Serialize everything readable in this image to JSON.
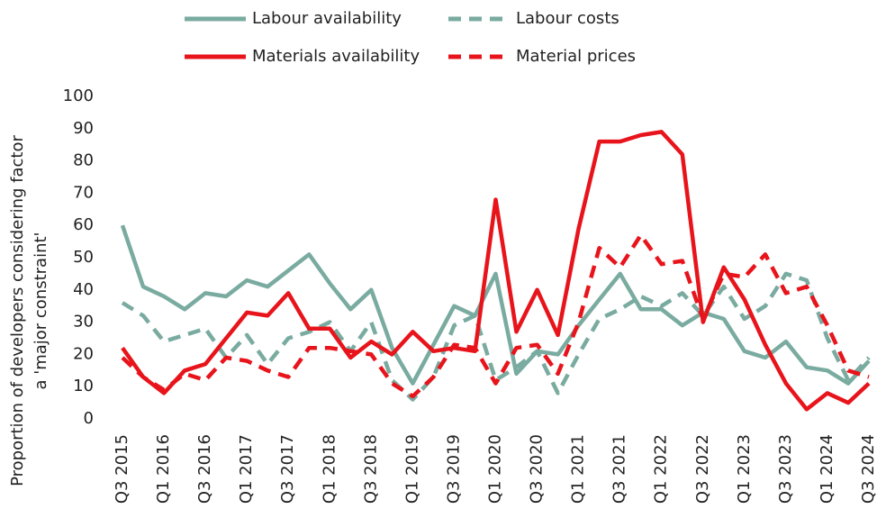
{
  "chart_data": {
    "type": "line",
    "y_label": [
      "Proportion of developers considering factor",
      "a 'major constraint'"
    ],
    "categories": [
      "Q3 2015",
      null,
      "Q1 2016",
      null,
      "Q3 2016",
      null,
      "Q1 2017",
      null,
      "Q3 2017",
      null,
      "Q1 2018",
      null,
      "Q3 2018",
      null,
      "Q1 2019",
      null,
      "Q3 2019",
      null,
      "Q1 2020",
      null,
      "Q3 2020",
      null,
      "Q1 2021",
      null,
      "Q3 2021",
      null,
      "Q1 2022",
      null,
      "Q3 2022",
      null,
      "Q1 2023",
      null,
      "Q3 2023",
      null,
      "Q1 2024",
      null,
      "Q3 2024"
    ],
    "series": [
      {
        "name": "Labour availability",
        "color": "#7aaba0",
        "dashed": false,
        "values": [
          60,
          41,
          38,
          34,
          39,
          38,
          43,
          41,
          46,
          51,
          42,
          34,
          40,
          22,
          11,
          23,
          35,
          32,
          45,
          14,
          21,
          20,
          29,
          37,
          45,
          34,
          34,
          29,
          33,
          31,
          21,
          19,
          24,
          16,
          15,
          11,
          18
        ]
      },
      {
        "name": "Labour costs",
        "color": "#7aaba0",
        "dashed": true,
        "values": [
          36,
          32,
          24,
          26,
          28,
          19,
          26,
          17,
          25,
          27,
          30,
          21,
          30,
          12,
          6,
          13,
          29,
          32,
          12,
          16,
          21,
          8,
          20,
          31,
          34,
          38,
          35,
          39,
          32,
          41,
          31,
          35,
          45,
          43,
          25,
          12,
          19
        ]
      },
      {
        "name": "Materials availability",
        "color": "#e8141b",
        "dashed": false,
        "values": [
          22,
          13,
          8,
          15,
          17,
          25,
          33,
          32,
          39,
          28,
          28,
          19,
          24,
          20,
          27,
          21,
          22,
          21,
          68,
          27,
          40,
          26,
          59,
          86,
          86,
          88,
          89,
          82,
          30,
          47,
          37,
          23,
          11,
          3,
          8,
          5,
          11
        ]
      },
      {
        "name": "Material prices",
        "color": "#e8141b",
        "dashed": true,
        "values": [
          19,
          13,
          9,
          14,
          12,
          19,
          18,
          15,
          13,
          22,
          22,
          21,
          20,
          11,
          7,
          13,
          23,
          22,
          11,
          22,
          23,
          14,
          30,
          53,
          47,
          57,
          48,
          49,
          31,
          45,
          44,
          51,
          39,
          41,
          29,
          15,
          13
        ]
      }
    ],
    "ylim": [
      0,
      100
    ],
    "yticks": [
      0,
      10,
      20,
      30,
      40,
      50,
      60,
      70,
      80,
      90,
      100
    ],
    "grid": false
  }
}
